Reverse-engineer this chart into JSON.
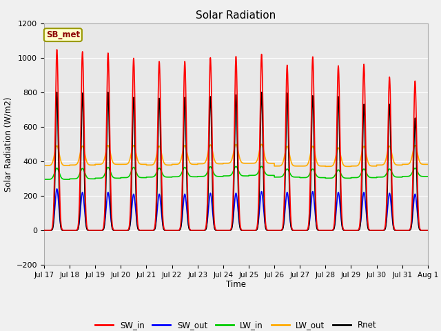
{
  "title": "Solar Radiation",
  "ylabel": "Solar Radiation (W/m2)",
  "xlabel": "Time",
  "ylim": [
    -200,
    1200
  ],
  "site_label": "SB_met",
  "fig_bg_color": "#f0f0f0",
  "plot_bg_color": "#e8e8e8",
  "grid_color": "#ffffff",
  "series": {
    "SW_in": {
      "color": "#ff0000",
      "lw": 1.2
    },
    "SW_out": {
      "color": "#0000ff",
      "lw": 1.2
    },
    "LW_in": {
      "color": "#00cc00",
      "lw": 1.2
    },
    "LW_out": {
      "color": "#ffaa00",
      "lw": 1.2
    },
    "Rnet": {
      "color": "#000000",
      "lw": 1.2
    }
  },
  "n_days": 15,
  "pts_per_day": 288,
  "xtick_labels": [
    "Jul 17",
    "Jul 18",
    "Jul 19",
    "Jul 20",
    "Jul 21",
    "Jul 22",
    "Jul 23",
    "Jul 24",
    "Jul 25",
    "Jul 26",
    "Jul 27",
    "Jul 28",
    "Jul 29",
    "Jul 30",
    "Jul 31",
    "Aug 1"
  ],
  "SW_in_peaks": [
    1047,
    1035,
    1027,
    997,
    978,
    978,
    1000,
    1007,
    1020,
    957,
    1005,
    953,
    962,
    888,
    865
  ],
  "SW_out_peaks": [
    240,
    220,
    220,
    210,
    210,
    210,
    215,
    215,
    225,
    220,
    225,
    220,
    220,
    215,
    210
  ],
  "LW_in_night": [
    295,
    298,
    302,
    305,
    308,
    310,
    312,
    315,
    318,
    308,
    305,
    302,
    305,
    308,
    312
  ],
  "LW_in_day": [
    360,
    358,
    365,
    365,
    360,
    365,
    368,
    370,
    370,
    355,
    355,
    350,
    355,
    355,
    360
  ],
  "LW_out_night": [
    375,
    378,
    382,
    382,
    378,
    382,
    385,
    388,
    388,
    372,
    372,
    370,
    372,
    378,
    382
  ],
  "LW_out_day": [
    490,
    488,
    492,
    492,
    488,
    492,
    495,
    498,
    498,
    487,
    487,
    478,
    487,
    488,
    492
  ],
  "Rnet_peaks": [
    800,
    795,
    800,
    770,
    765,
    770,
    775,
    785,
    800,
    795,
    780,
    775,
    730,
    730,
    650
  ]
}
